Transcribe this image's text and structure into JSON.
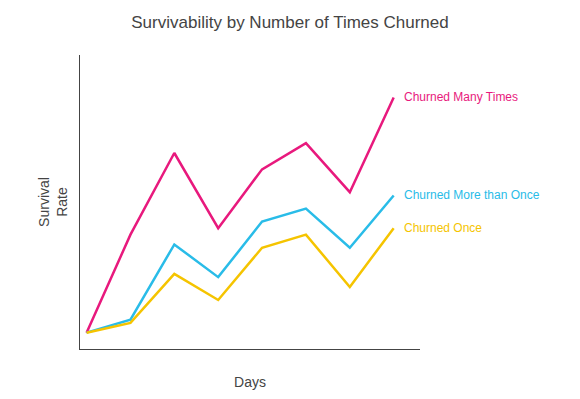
{
  "chart_data": {
    "type": "line",
    "title": "Survivability by Number of Times Churned",
    "xlabel": "Days",
    "ylabel": "Survival\nRate",
    "x": [
      0,
      1,
      2,
      3,
      4,
      5,
      6,
      7
    ],
    "series": [
      {
        "name": "Churned Many Times",
        "color": "#e8197d",
        "values": [
          0,
          0.3,
          0.55,
          0.32,
          0.5,
          0.58,
          0.43,
          0.72
        ]
      },
      {
        "name": "Churned More than Once",
        "color": "#29bce8",
        "values": [
          0,
          0.04,
          0.27,
          0.17,
          0.34,
          0.38,
          0.26,
          0.42
        ]
      },
      {
        "name": "Churned Once",
        "color": "#f5c400",
        "values": [
          0,
          0.03,
          0.18,
          0.1,
          0.26,
          0.3,
          0.14,
          0.32
        ]
      }
    ],
    "xlim": [
      -0.15,
      7.6
    ],
    "ylim": [
      -0.05,
      0.85
    ],
    "tick_labels": false,
    "grid": false
  }
}
